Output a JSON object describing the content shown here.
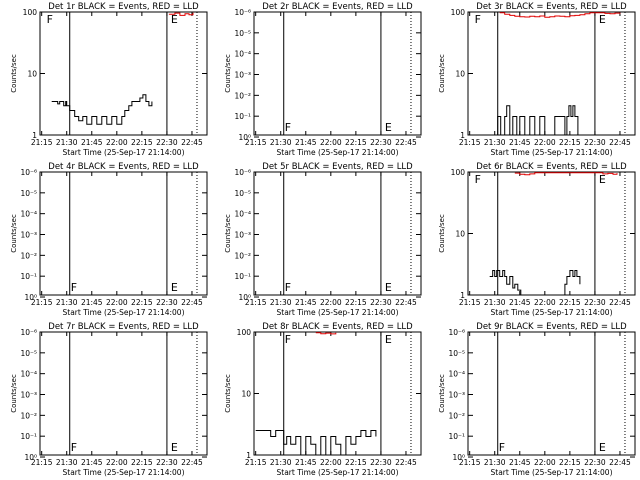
{
  "chart_data": [
    {
      "type": "line",
      "title": "Det 1r BLACK = Events, RED = LLD",
      "xlabel": "Start Time (25-Sep-17 21:14:00)",
      "ylabel": "Counts/sec",
      "yscale": "log",
      "ylim": [
        1,
        100
      ],
      "yticks": [
        {
          "v": 1,
          "label": "1"
        },
        {
          "v": 10,
          "label": "10"
        },
        {
          "v": 100,
          "label": "100"
        }
      ],
      "xlim": [
        21.2333,
        22.9
      ],
      "xticks": [
        {
          "v": 21.25,
          "label": "21:15"
        },
        {
          "v": 21.5,
          "label": "21:30"
        },
        {
          "v": 21.75,
          "label": "21:45"
        },
        {
          "v": 22.0,
          "label": "22:00"
        },
        {
          "v": 22.25,
          "label": "22:15"
        },
        {
          "v": 22.5,
          "label": "22:30"
        },
        {
          "v": 22.75,
          "label": "22:45"
        }
      ],
      "markers": {
        "solid": [
          21.53,
          22.5
        ],
        "dotted": [
          22.8
        ],
        "F": 21.28,
        "E": 22.52
      },
      "series": [
        {
          "name": "Events",
          "color": "#000000",
          "x": [
            21.35,
            21.38,
            21.41,
            21.43,
            21.45,
            21.47,
            21.49,
            21.5,
            21.53,
            21.58,
            21.62,
            21.66,
            21.7,
            21.75,
            21.8,
            21.85,
            21.9,
            21.95,
            22.0,
            22.05,
            22.08,
            22.12,
            22.15,
            22.2,
            22.23,
            22.26,
            22.29,
            22.32,
            22.35
          ],
          "y": [
            3.5,
            3.5,
            3.2,
            3.5,
            3.5,
            3.0,
            3.5,
            3.0,
            2.5,
            2.0,
            1.7,
            2.0,
            1.5,
            2.0,
            1.5,
            2.0,
            1.5,
            2.0,
            1.5,
            2.0,
            2.5,
            3.0,
            3.5,
            3.5,
            4.0,
            4.5,
            3.5,
            3.0,
            3.5
          ]
        },
        {
          "name": "LLD",
          "color": "#e00000",
          "x": [
            22.52,
            22.58,
            22.63,
            22.68,
            22.72,
            22.76
          ],
          "y": [
            92,
            96,
            88,
            94,
            90,
            97
          ]
        }
      ]
    },
    {
      "type": "line",
      "title": "Det 2r BLACK = Events, RED = LLD",
      "xlabel": "Start Time (25-Sep-17 21:14:00)",
      "ylabel": "Counts/sec",
      "yscale": "log",
      "ylim": [
        0.8,
        1e-06
      ],
      "yticks": [
        {
          "v": 1,
          "label": "10⁰"
        },
        {
          "v": 0.1,
          "label": "10⁻¹"
        },
        {
          "v": 0.01,
          "label": "10⁻²"
        },
        {
          "v": 0.001,
          "label": "10⁻³"
        },
        {
          "v": 0.0001,
          "label": "10⁻⁴"
        },
        {
          "v": 1e-05,
          "label": "10⁻⁵"
        },
        {
          "v": 1e-06,
          "label": "10⁻⁶"
        }
      ],
      "xlim": [
        21.2333,
        22.9
      ],
      "xticks": [
        {
          "v": 21.25,
          "label": "21:15"
        },
        {
          "v": 21.5,
          "label": "21:30"
        },
        {
          "v": 21.75,
          "label": "21:45"
        },
        {
          "v": 22.0,
          "label": "22:00"
        },
        {
          "v": 22.25,
          "label": "22:15"
        },
        {
          "v": 22.5,
          "label": "22:30"
        },
        {
          "v": 22.75,
          "label": "22:45"
        }
      ],
      "markers": {
        "solid": [
          21.53,
          22.5
        ],
        "dotted": [
          22.8
        ],
        "F": 21.52,
        "E": 22.52
      },
      "series": []
    },
    {
      "type": "line",
      "title": "Det 3r BLACK = Events, RED = LLD",
      "xlabel": "Start Time (25-Sep-17 21:14:00)",
      "ylabel": "Counts/sec",
      "yscale": "log",
      "ylim": [
        1,
        100
      ],
      "yticks": [
        {
          "v": 1,
          "label": "1"
        },
        {
          "v": 10,
          "label": "10"
        },
        {
          "v": 100,
          "label": "100"
        }
      ],
      "xlim": [
        21.2333,
        22.9
      ],
      "xticks": [
        {
          "v": 21.25,
          "label": "21:15"
        },
        {
          "v": 21.5,
          "label": "21:30"
        },
        {
          "v": 21.75,
          "label": "21:45"
        },
        {
          "v": 22.0,
          "label": "22:00"
        },
        {
          "v": 22.25,
          "label": "22:15"
        },
        {
          "v": 22.5,
          "label": "22:30"
        },
        {
          "v": 22.75,
          "label": "22:45"
        }
      ],
      "markers": {
        "solid": [
          21.53,
          22.5
        ],
        "dotted": [
          22.8
        ],
        "F": 21.28,
        "E": 22.52
      },
      "series": [
        {
          "name": "Events",
          "color": "#000000",
          "x": [
            21.5,
            21.53,
            21.56,
            21.6,
            21.62,
            21.65,
            21.68,
            21.72,
            21.75,
            21.8,
            21.85,
            21.9,
            21.95,
            22.0,
            22.05,
            22.1,
            22.2,
            22.22,
            22.24,
            22.26,
            22.28,
            22.3,
            22.33
          ],
          "y": [
            1.0,
            2.0,
            1.0,
            2.0,
            3.0,
            1.0,
            2.0,
            1.0,
            2.0,
            1.0,
            2.0,
            1.0,
            2.0,
            1.0,
            1.0,
            2.0,
            1.0,
            2.0,
            3.0,
            2.0,
            3.0,
            2.0,
            1.0
          ]
        },
        {
          "name": "LLD",
          "color": "#e00000",
          "x": [
            21.55,
            21.6,
            21.65,
            21.7,
            21.75,
            21.8,
            21.85,
            21.9,
            21.95,
            22.0,
            22.05,
            22.1,
            22.15,
            22.2,
            22.25,
            22.3,
            22.35,
            22.4,
            22.45,
            22.55,
            22.6,
            22.65,
            22.7,
            22.75
          ],
          "y": [
            97,
            92,
            88,
            85,
            84,
            83,
            85,
            84,
            86,
            82,
            84,
            86,
            85,
            84,
            87,
            88,
            90,
            94,
            97,
            97,
            95,
            94,
            96,
            97
          ]
        }
      ]
    },
    {
      "type": "line",
      "title": "Det 4r BLACK = Events, RED = LLD",
      "xlabel": "Start Time (25-Sep-17 21:14:00)",
      "ylabel": "Counts/sec",
      "yscale": "log",
      "ylim": [
        0.8,
        1e-06
      ],
      "yticks": [
        {
          "v": 1,
          "label": "10⁰"
        },
        {
          "v": 0.1,
          "label": "10⁻¹"
        },
        {
          "v": 0.01,
          "label": "10⁻²"
        },
        {
          "v": 0.001,
          "label": "10⁻³"
        },
        {
          "v": 0.0001,
          "label": "10⁻⁴"
        },
        {
          "v": 1e-05,
          "label": "10⁻⁵"
        },
        {
          "v": 1e-06,
          "label": "10⁻⁶"
        }
      ],
      "xlim": [
        21.2333,
        22.9
      ],
      "xticks": [
        {
          "v": 21.25,
          "label": "21:15"
        },
        {
          "v": 21.5,
          "label": "21:30"
        },
        {
          "v": 21.75,
          "label": "21:45"
        },
        {
          "v": 22.0,
          "label": "22:00"
        },
        {
          "v": 22.25,
          "label": "22:15"
        },
        {
          "v": 22.5,
          "label": "22:30"
        },
        {
          "v": 22.75,
          "label": "22:45"
        }
      ],
      "markers": {
        "solid": [
          21.53,
          22.5
        ],
        "dotted": [
          22.8
        ],
        "F": 21.52,
        "E": 22.52
      },
      "series": []
    },
    {
      "type": "line",
      "title": "Det 5r BLACK = Events, RED = LLD",
      "xlabel": "Start Time (25-Sep-17 21:14:00)",
      "ylabel": "Counts/sec",
      "yscale": "log",
      "ylim": [
        0.8,
        1e-06
      ],
      "yticks": [
        {
          "v": 1,
          "label": "10⁰"
        },
        {
          "v": 0.1,
          "label": "10⁻¹"
        },
        {
          "v": 0.01,
          "label": "10⁻²"
        },
        {
          "v": 0.001,
          "label": "10⁻³"
        },
        {
          "v": 0.0001,
          "label": "10⁻⁴"
        },
        {
          "v": 1e-05,
          "label": "10⁻⁵"
        },
        {
          "v": 1e-06,
          "label": "10⁻⁶"
        }
      ],
      "xlim": [
        21.2333,
        22.9
      ],
      "xticks": [
        {
          "v": 21.25,
          "label": "21:15"
        },
        {
          "v": 21.5,
          "label": "21:30"
        },
        {
          "v": 21.75,
          "label": "21:45"
        },
        {
          "v": 22.0,
          "label": "22:00"
        },
        {
          "v": 22.25,
          "label": "22:15"
        },
        {
          "v": 22.5,
          "label": "22:30"
        },
        {
          "v": 22.75,
          "label": "22:45"
        }
      ],
      "markers": {
        "solid": [
          21.53,
          22.5
        ],
        "dotted": [
          22.8
        ],
        "F": 21.52,
        "E": 22.52
      },
      "series": []
    },
    {
      "type": "line",
      "title": "Det 6r BLACK = Events, RED = LLD",
      "xlabel": "Start Time (25-Sep-17 21:14:00)",
      "ylabel": "Counts/sec",
      "yscale": "log",
      "ylim": [
        1,
        100
      ],
      "yticks": [
        {
          "v": 1,
          "label": "1"
        },
        {
          "v": 10,
          "label": "10"
        },
        {
          "v": 100,
          "label": "100"
        }
      ],
      "xlim": [
        21.2333,
        22.9
      ],
      "xticks": [
        {
          "v": 21.25,
          "label": "21:15"
        },
        {
          "v": 21.5,
          "label": "21:30"
        },
        {
          "v": 21.75,
          "label": "21:45"
        },
        {
          "v": 22.0,
          "label": "22:00"
        },
        {
          "v": 22.25,
          "label": "22:15"
        },
        {
          "v": 22.5,
          "label": "22:30"
        },
        {
          "v": 22.75,
          "label": "22:45"
        }
      ],
      "markers": {
        "solid": [
          21.53,
          22.5
        ],
        "dotted": [
          22.8
        ],
        "F": 21.28,
        "E": 22.52
      },
      "series": [
        {
          "name": "Events",
          "color": "#000000",
          "x": [
            21.45,
            21.48,
            21.5,
            21.52,
            21.55,
            21.58,
            21.6,
            21.62,
            21.65,
            21.68,
            21.7,
            21.73,
            21.76,
            22.2,
            22.22,
            22.25,
            22.28,
            22.3,
            22.32,
            22.35
          ],
          "y": [
            2.0,
            2.5,
            2.0,
            2.5,
            2.0,
            2.5,
            2.0,
            1.5,
            2.0,
            1.3,
            1.5,
            1.2,
            1.0,
            1.5,
            2.0,
            2.5,
            2.0,
            2.5,
            2.0,
            1.5
          ]
        },
        {
          "name": "LLD",
          "color": "#e00000",
          "x": [
            21.7,
            21.75,
            21.8,
            21.85,
            21.9,
            22.52,
            22.58,
            22.63,
            22.68,
            22.72
          ],
          "y": [
            96,
            92,
            90,
            93,
            97,
            97,
            93,
            95,
            92,
            96
          ]
        }
      ]
    },
    {
      "type": "line",
      "title": "Det 7r BLACK = Events, RED = LLD",
      "xlabel": "Start Time (25-Sep-17 21:14:00)",
      "ylabel": "Counts/sec",
      "yscale": "log",
      "ylim": [
        0.8,
        1e-06
      ],
      "yticks": [
        {
          "v": 1,
          "label": "10⁰"
        },
        {
          "v": 0.1,
          "label": "10⁻¹"
        },
        {
          "v": 0.01,
          "label": "10⁻²"
        },
        {
          "v": 0.001,
          "label": "10⁻³"
        },
        {
          "v": 0.0001,
          "label": "10⁻⁴"
        },
        {
          "v": 1e-05,
          "label": "10⁻⁵"
        },
        {
          "v": 1e-06,
          "label": "10⁻⁶"
        }
      ],
      "xlim": [
        21.2333,
        22.9
      ],
      "xticks": [
        {
          "v": 21.25,
          "label": "21:15"
        },
        {
          "v": 21.5,
          "label": "21:30"
        },
        {
          "v": 21.75,
          "label": "21:45"
        },
        {
          "v": 22.0,
          "label": "22:00"
        },
        {
          "v": 22.25,
          "label": "22:15"
        },
        {
          "v": 22.5,
          "label": "22:30"
        },
        {
          "v": 22.75,
          "label": "22:45"
        }
      ],
      "markers": {
        "solid": [
          21.53,
          22.5
        ],
        "dotted": [
          22.8
        ],
        "F": 21.52,
        "E": 22.52
      },
      "series": []
    },
    {
      "type": "line",
      "title": "Det 8r BLACK = Events, RED = LLD",
      "xlabel": "Start Time (25-Sep-17 21:14:00)",
      "ylabel": "Counts/sec",
      "yscale": "log",
      "ylim": [
        1,
        100
      ],
      "yticks": [
        {
          "v": 1,
          "label": "1"
        },
        {
          "v": 10,
          "label": "10"
        },
        {
          "v": 100,
          "label": "100"
        }
      ],
      "xlim": [
        21.2333,
        22.9
      ],
      "xticks": [
        {
          "v": 21.25,
          "label": "21:15"
        },
        {
          "v": 21.5,
          "label": "21:30"
        },
        {
          "v": 21.75,
          "label": "21:45"
        },
        {
          "v": 22.0,
          "label": "22:00"
        },
        {
          "v": 22.25,
          "label": "22:15"
        },
        {
          "v": 22.5,
          "label": "22:30"
        },
        {
          "v": 22.75,
          "label": "22:45"
        }
      ],
      "markers": {
        "solid": [
          21.53,
          22.5
        ],
        "dotted": [
          22.8
        ],
        "F": 21.52,
        "E": 22.52
      },
      "series": [
        {
          "name": "Events",
          "color": "#000000",
          "x": [
            21.25,
            21.3,
            21.35,
            21.4,
            21.45,
            21.5,
            21.53,
            21.56,
            21.6,
            21.65,
            21.7,
            21.75,
            21.8,
            21.85,
            21.9,
            21.95,
            22.0,
            22.05,
            22.1,
            22.15,
            22.2,
            22.25,
            22.3,
            22.35,
            22.4,
            22.45
          ],
          "y": [
            2.5,
            2.5,
            2.5,
            2.0,
            2.5,
            2.5,
            1.5,
            2.0,
            1.5,
            2.0,
            1.0,
            2.0,
            1.5,
            1.0,
            2.0,
            1.0,
            2.0,
            1.5,
            1.0,
            2.0,
            1.5,
            2.0,
            2.5,
            2.0,
            2.5,
            2.0
          ]
        },
        {
          "name": "LLD",
          "color": "#e00000",
          "x": [
            21.85,
            21.9,
            21.95,
            22.0,
            22.05
          ],
          "y": [
            97,
            94,
            96,
            93,
            97
          ]
        }
      ]
    },
    {
      "type": "line",
      "title": "Det 9r BLACK = Events, RED = LLD",
      "xlabel": "Start Time (25-Sep-17 21:14:00)",
      "ylabel": "Counts/sec",
      "yscale": "log",
      "ylim": [
        0.8,
        1e-06
      ],
      "yticks": [
        {
          "v": 1,
          "label": "10⁰"
        },
        {
          "v": 0.1,
          "label": "10⁻¹"
        },
        {
          "v": 0.01,
          "label": "10⁻²"
        },
        {
          "v": 0.001,
          "label": "10⁻³"
        },
        {
          "v": 0.0001,
          "label": "10⁻⁴"
        },
        {
          "v": 1e-05,
          "label": "10⁻⁵"
        },
        {
          "v": 1e-06,
          "label": "10⁻⁶"
        }
      ],
      "xlim": [
        21.2333,
        22.9
      ],
      "xticks": [
        {
          "v": 21.25,
          "label": "21:15"
        },
        {
          "v": 21.5,
          "label": "21:30"
        },
        {
          "v": 21.75,
          "label": "21:45"
        },
        {
          "v": 22.0,
          "label": "22:00"
        },
        {
          "v": 22.25,
          "label": "22:15"
        },
        {
          "v": 22.5,
          "label": "22:30"
        },
        {
          "v": 22.75,
          "label": "22:45"
        }
      ],
      "markers": {
        "solid": [
          21.53,
          22.5
        ],
        "dotted": [
          22.8
        ],
        "F": 21.52,
        "E": 22.52
      },
      "series": []
    }
  ]
}
